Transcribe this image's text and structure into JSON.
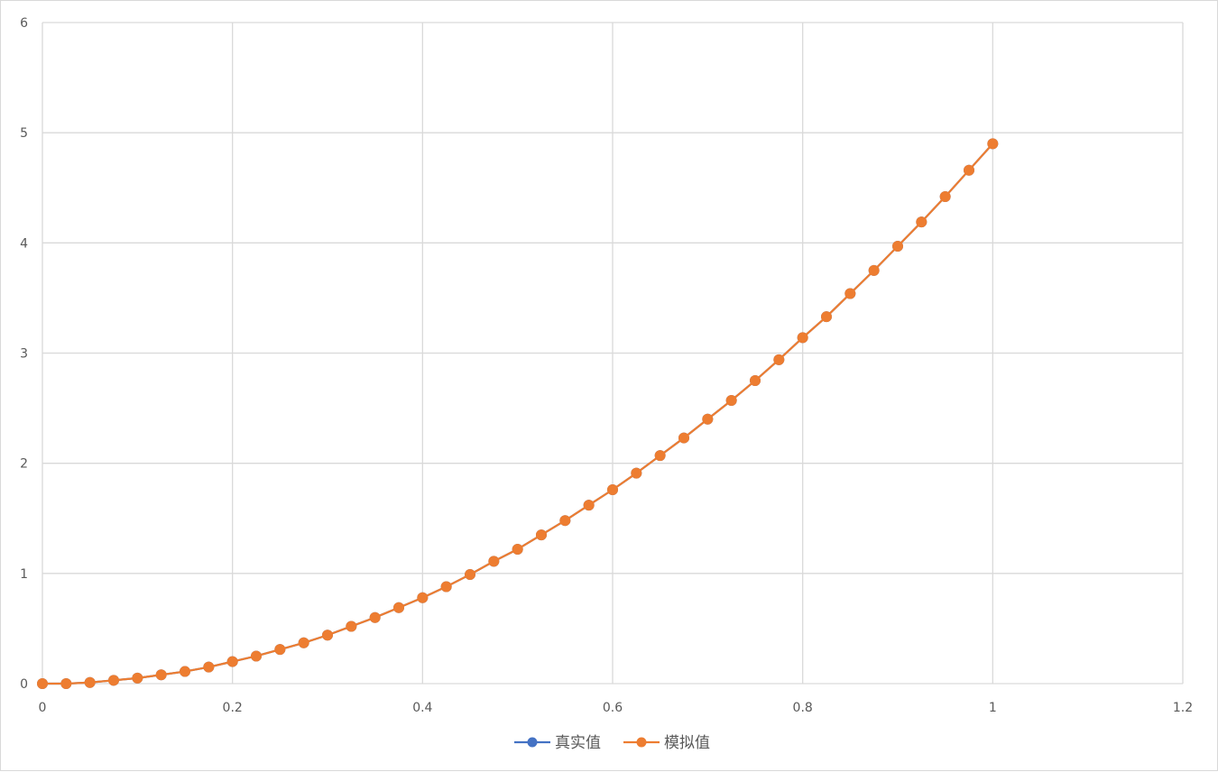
{
  "chart_data": {
    "type": "scatter",
    "title": "",
    "xlabel": "",
    "ylabel": "",
    "xlim": [
      0,
      1.2
    ],
    "ylim": [
      0,
      6
    ],
    "x_ticks": [
      "0",
      "0.2",
      "0.4",
      "0.6",
      "0.8",
      "1",
      "1.2"
    ],
    "y_ticks": [
      "0",
      "1",
      "2",
      "3",
      "4",
      "5",
      "6"
    ],
    "grid": true,
    "legend_position": "bottom",
    "x": [
      0,
      0.025,
      0.05,
      0.075,
      0.1,
      0.125,
      0.15,
      0.175,
      0.2,
      0.225,
      0.25,
      0.275,
      0.3,
      0.325,
      0.35,
      0.375,
      0.4,
      0.425,
      0.45,
      0.475,
      0.5,
      0.525,
      0.55,
      0.575,
      0.6,
      0.625,
      0.65,
      0.675,
      0.7,
      0.725,
      0.75,
      0.775,
      0.8,
      0.825,
      0.85,
      0.875,
      0.9,
      0.925,
      0.95,
      0.975,
      1
    ],
    "series": [
      {
        "name": "真实值",
        "color": "#4472c4",
        "values": [
          0,
          0.0,
          0.01,
          0.03,
          0.05,
          0.08,
          0.11,
          0.15,
          0.2,
          0.25,
          0.31,
          0.37,
          0.44,
          0.52,
          0.6,
          0.69,
          0.78,
          0.88,
          0.99,
          1.11,
          1.22,
          1.35,
          1.48,
          1.62,
          1.76,
          1.91,
          2.07,
          2.23,
          2.4,
          2.57,
          2.75,
          2.94,
          3.14,
          3.33,
          3.54,
          3.75,
          3.97,
          4.19,
          4.42,
          4.66,
          4.9
        ]
      },
      {
        "name": "模拟值",
        "color": "#ed7d31",
        "values": [
          0,
          0.0,
          0.01,
          0.03,
          0.05,
          0.08,
          0.11,
          0.15,
          0.2,
          0.25,
          0.31,
          0.37,
          0.44,
          0.52,
          0.6,
          0.69,
          0.78,
          0.88,
          0.99,
          1.11,
          1.22,
          1.35,
          1.48,
          1.62,
          1.76,
          1.91,
          2.07,
          2.23,
          2.4,
          2.57,
          2.75,
          2.94,
          3.14,
          3.33,
          3.54,
          3.75,
          3.97,
          4.19,
          4.42,
          4.66,
          4.9
        ]
      }
    ],
    "gridline_color": "#d9d9d9",
    "axis_label_color": "#595959"
  }
}
